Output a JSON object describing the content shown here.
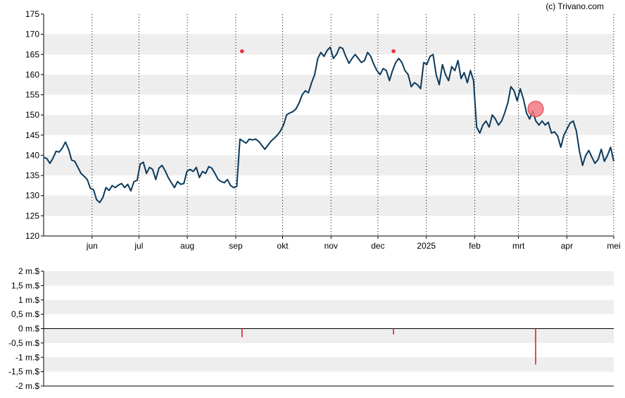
{
  "credit": "(c) Trivano.com",
  "colors": {
    "band": "#eeeeee",
    "line": "#0b3a5c",
    "marker": "#e8313f",
    "marker_fill": "#f07a84",
    "volume": "#e0101e",
    "axis": "#000000",
    "vgrid": "#000000"
  },
  "chart_data": [
    {
      "type": "line",
      "title": "",
      "ylim": [
        120,
        175
      ],
      "yticks": [
        175,
        170,
        165,
        160,
        155,
        150,
        145,
        140,
        135,
        130,
        125,
        120
      ],
      "x_date_range": [
        "2024-05-01",
        "2025-05-01"
      ],
      "xticks": [
        {
          "label": "jun",
          "date": "2024-06-01"
        },
        {
          "label": "jul",
          "date": "2024-07-01"
        },
        {
          "label": "aug",
          "date": "2024-08-01"
        },
        {
          "label": "sep",
          "date": "2024-09-01"
        },
        {
          "label": "okt",
          "date": "2024-10-01"
        },
        {
          "label": "nov",
          "date": "2024-11-01"
        },
        {
          "label": "dec",
          "date": "2024-12-01"
        },
        {
          "label": "2025",
          "date": "2025-01-01"
        },
        {
          "label": "feb",
          "date": "2025-02-01"
        },
        {
          "label": "mrt",
          "date": "2025-03-01"
        },
        {
          "label": "apr",
          "date": "2025-04-01"
        },
        {
          "label": "mei",
          "date": "2025-05-01"
        }
      ],
      "grid": "horizontal bands, dotted vertical lines at month ticks",
      "series": [
        {
          "points": [
            [
              "2024-05-01",
              139.5
            ],
            [
              "2024-05-03",
              139.2
            ],
            [
              "2024-05-05",
              138.0
            ],
            [
              "2024-05-07",
              139.3
            ],
            [
              "2024-05-09",
              141.0
            ],
            [
              "2024-05-11",
              140.8
            ],
            [
              "2024-05-13",
              141.8
            ],
            [
              "2024-05-15",
              143.3
            ],
            [
              "2024-05-17",
              141.5
            ],
            [
              "2024-05-19",
              138.8
            ],
            [
              "2024-05-21",
              138.5
            ],
            [
              "2024-05-23",
              137.0
            ],
            [
              "2024-05-25",
              135.5
            ],
            [
              "2024-05-27",
              134.8
            ],
            [
              "2024-05-29",
              134.0
            ],
            [
              "2024-05-31",
              131.8
            ],
            [
              "2024-06-02",
              131.5
            ],
            [
              "2024-06-04",
              129.0
            ],
            [
              "2024-06-06",
              128.3
            ],
            [
              "2024-06-08",
              129.5
            ],
            [
              "2024-06-10",
              132.0
            ],
            [
              "2024-06-12",
              131.3
            ],
            [
              "2024-06-14",
              132.5
            ],
            [
              "2024-06-16",
              132.0
            ],
            [
              "2024-06-18",
              132.6
            ],
            [
              "2024-06-20",
              133.0
            ],
            [
              "2024-06-22",
              132.0
            ],
            [
              "2024-06-24",
              132.8
            ],
            [
              "2024-06-26",
              131.2
            ],
            [
              "2024-06-28",
              133.5
            ],
            [
              "2024-06-30",
              133.8
            ],
            [
              "2024-07-02",
              137.8
            ],
            [
              "2024-07-04",
              138.3
            ],
            [
              "2024-07-06",
              135.5
            ],
            [
              "2024-07-08",
              137.0
            ],
            [
              "2024-07-10",
              136.5
            ],
            [
              "2024-07-12",
              134.0
            ],
            [
              "2024-07-14",
              136.8
            ],
            [
              "2024-07-16",
              137.5
            ],
            [
              "2024-07-18",
              136.2
            ],
            [
              "2024-07-20",
              134.5
            ],
            [
              "2024-07-22",
              133.2
            ],
            [
              "2024-07-24",
              132.0
            ],
            [
              "2024-07-26",
              133.5
            ],
            [
              "2024-07-28",
              132.8
            ],
            [
              "2024-07-30",
              133.0
            ],
            [
              "2024-08-01",
              136.0
            ],
            [
              "2024-08-03",
              136.5
            ],
            [
              "2024-08-05",
              136.0
            ],
            [
              "2024-08-07",
              137.0
            ],
            [
              "2024-08-09",
              134.5
            ],
            [
              "2024-08-11",
              136.0
            ],
            [
              "2024-08-13",
              135.5
            ],
            [
              "2024-08-15",
              137.2
            ],
            [
              "2024-08-17",
              136.8
            ],
            [
              "2024-08-19",
              135.5
            ],
            [
              "2024-08-21",
              134.0
            ],
            [
              "2024-08-23",
              133.5
            ],
            [
              "2024-08-25",
              133.2
            ],
            [
              "2024-08-27",
              134.0
            ],
            [
              "2024-08-29",
              132.5
            ],
            [
              "2024-08-31",
              132.0
            ],
            [
              "2024-09-01",
              132.3
            ],
            [
              "2024-09-02",
              144.0
            ],
            [
              "2024-09-04",
              143.5
            ],
            [
              "2024-09-06",
              143.0
            ],
            [
              "2024-09-08",
              144.0
            ],
            [
              "2024-09-10",
              143.8
            ],
            [
              "2024-09-12",
              144.0
            ],
            [
              "2024-09-14",
              143.5
            ],
            [
              "2024-09-16",
              142.5
            ],
            [
              "2024-09-18",
              141.5
            ],
            [
              "2024-09-20",
              142.5
            ],
            [
              "2024-09-22",
              143.5
            ],
            [
              "2024-09-24",
              144.2
            ],
            [
              "2024-09-26",
              145.0
            ],
            [
              "2024-09-28",
              146.0
            ],
            [
              "2024-09-30",
              147.5
            ],
            [
              "2024-10-02",
              150.0
            ],
            [
              "2024-10-04",
              150.5
            ],
            [
              "2024-10-06",
              150.8
            ],
            [
              "2024-10-08",
              151.5
            ],
            [
              "2024-10-10",
              153.0
            ],
            [
              "2024-10-12",
              155.0
            ],
            [
              "2024-10-14",
              156.0
            ],
            [
              "2024-10-16",
              155.5
            ],
            [
              "2024-10-18",
              158.0
            ],
            [
              "2024-10-20",
              160.0
            ],
            [
              "2024-10-22",
              164.0
            ],
            [
              "2024-10-24",
              165.5
            ],
            [
              "2024-10-26",
              164.5
            ],
            [
              "2024-10-28",
              166.0
            ],
            [
              "2024-10-30",
              166.8
            ],
            [
              "2024-11-01",
              164.0
            ],
            [
              "2024-11-03",
              165.0
            ],
            [
              "2024-11-05",
              166.8
            ],
            [
              "2024-11-07",
              166.5
            ],
            [
              "2024-11-09",
              164.5
            ],
            [
              "2024-11-11",
              162.8
            ],
            [
              "2024-11-13",
              164.0
            ],
            [
              "2024-11-15",
              165.0
            ],
            [
              "2024-11-17",
              164.0
            ],
            [
              "2024-11-19",
              163.0
            ],
            [
              "2024-11-21",
              163.5
            ],
            [
              "2024-11-23",
              165.5
            ],
            [
              "2024-11-25",
              164.5
            ],
            [
              "2024-11-27",
              162.5
            ],
            [
              "2024-11-29",
              161.0
            ],
            [
              "2024-12-01",
              160.0
            ],
            [
              "2024-12-03",
              161.5
            ],
            [
              "2024-12-05",
              161.0
            ],
            [
              "2024-12-07",
              158.5
            ],
            [
              "2024-12-09",
              161.0
            ],
            [
              "2024-12-11",
              163.0
            ],
            [
              "2024-12-13",
              164.0
            ],
            [
              "2024-12-15",
              163.0
            ],
            [
              "2024-12-17",
              161.0
            ],
            [
              "2024-12-19",
              160.0
            ],
            [
              "2024-12-21",
              157.0
            ],
            [
              "2024-12-23",
              158.0
            ],
            [
              "2024-12-25",
              157.5
            ],
            [
              "2024-12-27",
              156.5
            ],
            [
              "2024-12-29",
              163.0
            ],
            [
              "2024-12-31",
              162.5
            ]
          ],
          "values_note": ""
        }
      ],
      "events": [
        {
          "date": "2024-09-05",
          "value": 165.8,
          "size": "small"
        },
        {
          "date": "2024-12-11",
          "value": 165.8,
          "size": "small"
        },
        {
          "date": "2025-03-12",
          "value": 151.5,
          "size": "large"
        }
      ]
    },
    {
      "type": "bar",
      "title": "",
      "ylim": [
        -2,
        2
      ],
      "yticks": [
        "2 m.$",
        "1,5 m.$",
        "1 m.$",
        "0,5 m.$",
        "0 m.$",
        "-0,5 m.$",
        "-1 m.$",
        "-1,5 m.$",
        "-2 m.$"
      ],
      "yvalues": [
        2,
        1.5,
        1,
        0.5,
        0,
        -0.5,
        -1,
        -1.5,
        -2
      ],
      "bars": [
        {
          "date": "2024-09-05",
          "value": -0.3
        },
        {
          "date": "2024-12-11",
          "value": -0.2
        },
        {
          "date": "2025-03-12",
          "value": -1.25
        }
      ]
    }
  ]
}
